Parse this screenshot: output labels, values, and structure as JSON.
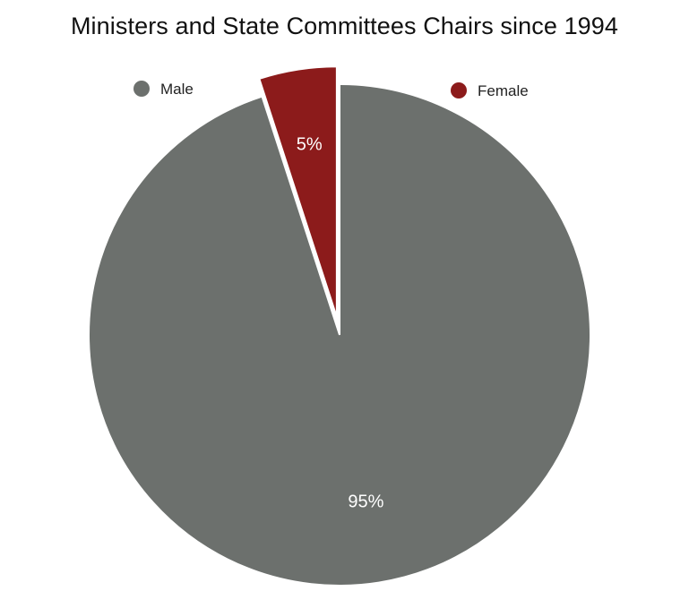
{
  "chart_data": {
    "type": "pie",
    "title": "Ministers and State Committees Chairs since 1994",
    "categories": [
      "Male",
      "Female"
    ],
    "values": [
      95,
      5
    ],
    "value_labels": [
      "95%",
      "5%"
    ],
    "unit": "%",
    "colors": [
      "#6c706d",
      "#8c1b1b"
    ],
    "exploded": [
      false,
      true
    ],
    "legend": {
      "placement": "top",
      "entries": [
        "Male",
        "Female"
      ]
    },
    "start_angle_degrees": 0,
    "direction": "clockwise"
  }
}
